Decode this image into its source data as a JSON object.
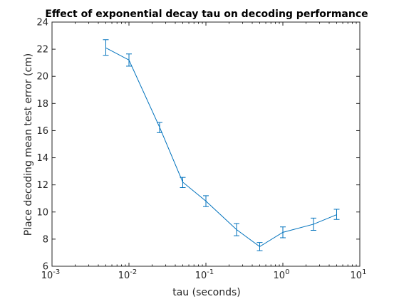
{
  "chart_data": {
    "type": "line",
    "title": "Effect of exponential decay tau on decoding performance",
    "xlabel": "tau (seconds)",
    "ylabel": "Place decoding mean test error (cm)",
    "xscale": "log",
    "xlim": [
      0.001,
      10
    ],
    "ylim": [
      6,
      24
    ],
    "grid": false,
    "legend": "none",
    "x_ticks": [
      0.001,
      0.01,
      0.1,
      1,
      10
    ],
    "x_tick_labels": [
      {
        "base": "10",
        "exp": "-3"
      },
      {
        "base": "10",
        "exp": "-2"
      },
      {
        "base": "10",
        "exp": "-1"
      },
      {
        "base": "10",
        "exp": "0"
      },
      {
        "base": "10",
        "exp": "1"
      }
    ],
    "y_ticks": [
      6,
      8,
      10,
      12,
      14,
      16,
      18,
      20,
      22,
      24
    ],
    "y_tick_labels": [
      "6",
      "8",
      "10",
      "12",
      "14",
      "16",
      "18",
      "20",
      "22",
      "24"
    ],
    "line_color": "#0072BD",
    "series": [
      {
        "x": [
          0.005,
          0.01,
          0.025,
          0.05,
          0.1,
          0.25,
          0.5,
          1,
          2.5,
          5
        ],
        "y": [
          22.1,
          21.2,
          16.25,
          12.2,
          10.8,
          8.7,
          7.45,
          8.5,
          9.1,
          9.8
        ],
        "err_low": [
          21.55,
          20.75,
          15.85,
          11.8,
          10.4,
          8.25,
          7.15,
          8.1,
          8.65,
          9.45
        ],
        "err_high": [
          22.7,
          21.65,
          16.6,
          12.55,
          11.2,
          9.15,
          7.75,
          8.9,
          9.55,
          10.2
        ]
      }
    ]
  }
}
